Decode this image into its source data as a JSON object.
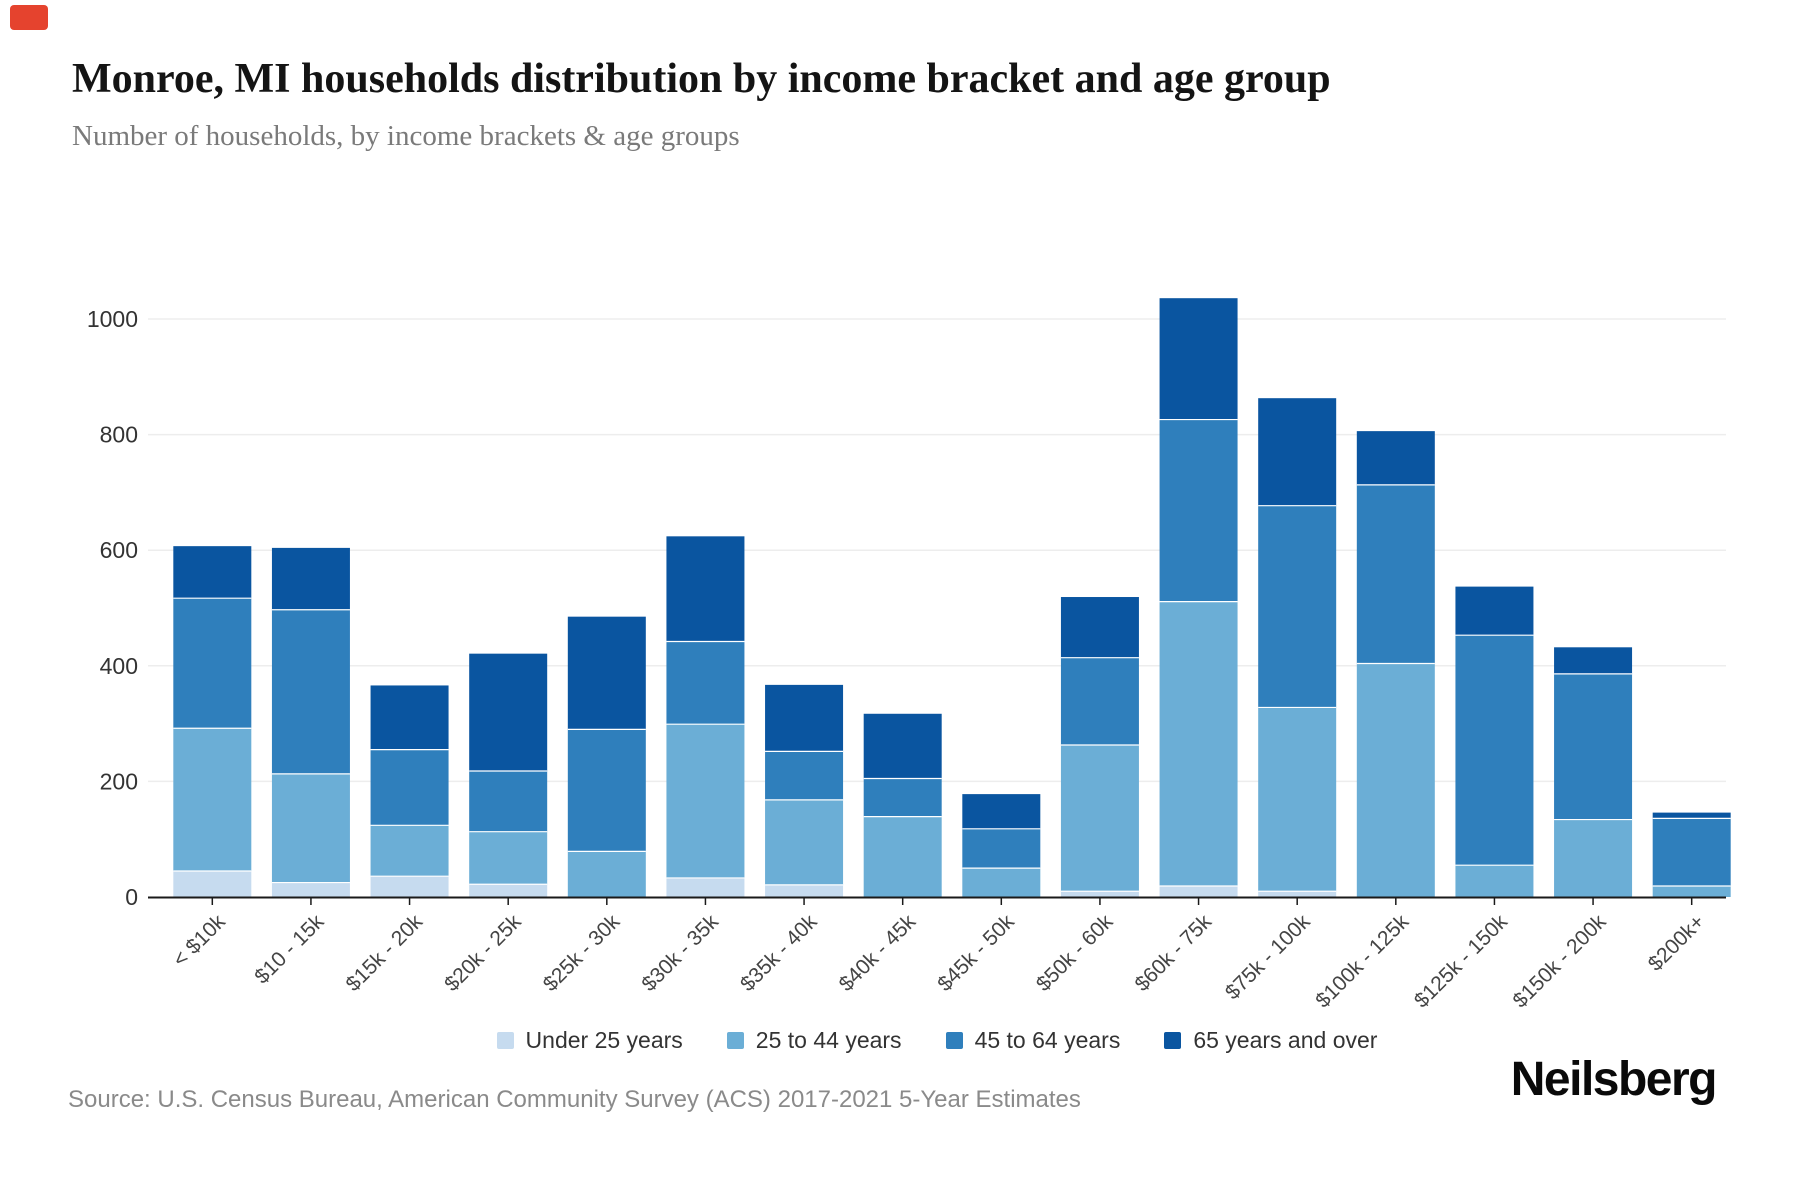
{
  "page": {
    "title": "Monroe, MI households distribution by income bracket and age group",
    "subtitle": "Number of households, by income brackets & age groups",
    "source": "Source: U.S. Census Bureau, American Community Survey (ACS) 2017-2021 5-Year Estimates",
    "brand": "Neilsberg"
  },
  "chart_data": {
    "type": "bar",
    "stacked": true,
    "title": "Monroe, MI households distribution by income bracket and age group",
    "subtitle": "Number of households, by income brackets & age groups",
    "categories": [
      "< $10k",
      "$10 - 15k",
      "$15k - 20k",
      "$20k - 25k",
      "$25k - 30k",
      "$30k - 35k",
      "$35k - 40k",
      "$40k - 45k",
      "$45k - 50k",
      "$50k - 60k",
      "$60k - 75k",
      "$75k - 100k",
      "$100k - 125k",
      "$125k - 150k",
      "$150k - 200k",
      "$200k+"
    ],
    "series": [
      {
        "name": "Under 25 years",
        "color": "#c6dbef",
        "values": [
          45,
          25,
          36,
          22,
          0,
          33,
          21,
          0,
          0,
          10,
          19,
          10,
          0,
          0,
          0,
          0
        ]
      },
      {
        "name": "25 to 44 years",
        "color": "#6baed6",
        "values": [
          247,
          188,
          88,
          91,
          79,
          266,
          147,
          139,
          50,
          253,
          492,
          318,
          404,
          55,
          134,
          19
        ]
      },
      {
        "name": "45 to 64 years",
        "color": "#2f7fbc",
        "values": [
          225,
          284,
          131,
          105,
          211,
          143,
          84,
          66,
          68,
          151,
          315,
          349,
          309,
          398,
          252,
          117
        ]
      },
      {
        "name": "65 years and over",
        "color": "#0a55a0",
        "values": [
          90,
          107,
          111,
          203,
          195,
          182,
          115,
          112,
          60,
          105,
          210,
          186,
          93,
          84,
          46,
          10
        ]
      }
    ],
    "totals": [
      607,
      604,
      366,
      421,
      485,
      624,
      367,
      317,
      178,
      519,
      1036,
      863,
      806,
      537,
      432,
      146
    ],
    "ylim": [
      0,
      1000
    ],
    "yticks": [
      0,
      200,
      400,
      600,
      800,
      1000
    ],
    "xlabel": "",
    "ylabel": "",
    "grid": "horizontal",
    "legend_position": "bottom",
    "colors": {
      "grid_line": "#ededed",
      "axis_line": "#1a1a1a",
      "tick_label": "#333333",
      "x_tick_label": "#444444"
    }
  }
}
